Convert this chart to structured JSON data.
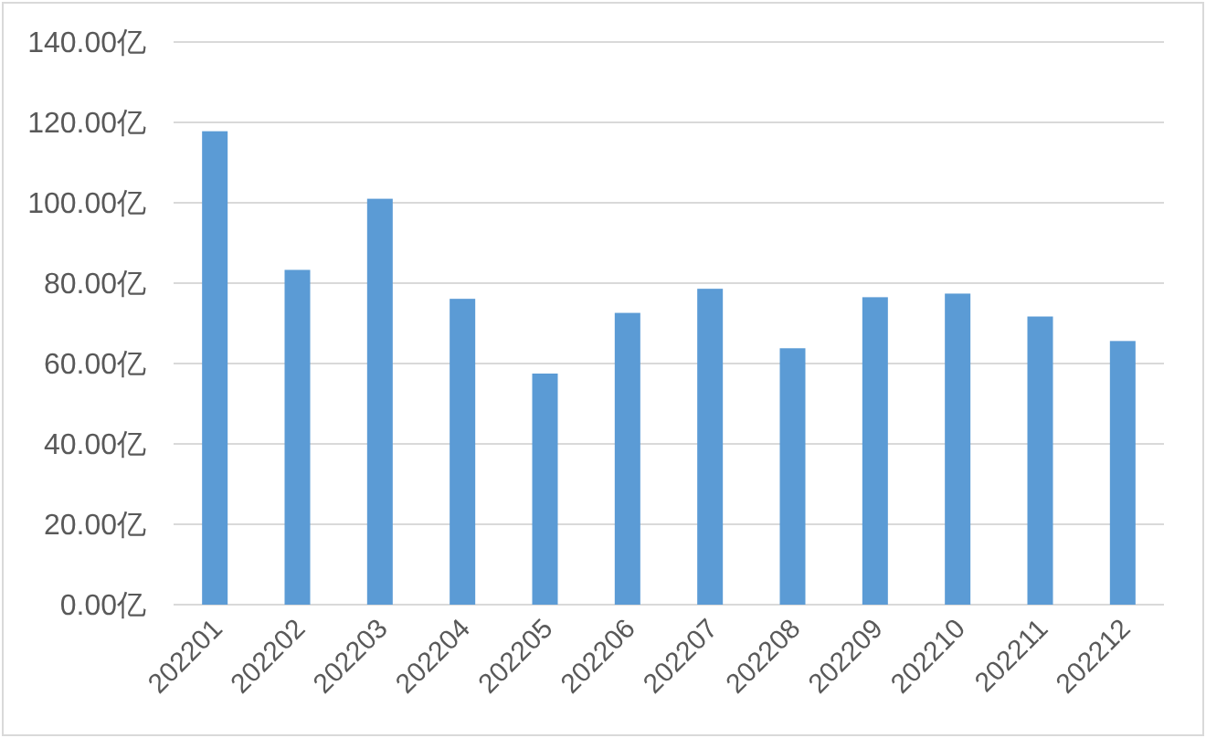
{
  "chart_data": {
    "type": "bar",
    "categories": [
      "202201",
      "202202",
      "202203",
      "202204",
      "202205",
      "202206",
      "202207",
      "202208",
      "202209",
      "202210",
      "202211",
      "202212"
    ],
    "values": [
      117.8,
      83.3,
      101.0,
      76.1,
      57.5,
      72.6,
      78.6,
      63.8,
      76.5,
      77.4,
      71.7,
      65.6
    ],
    "color": "#5b9bd5",
    "ylim": [
      0,
      140
    ],
    "yticks": [
      {
        "value": 0,
        "label": "0.00亿"
      },
      {
        "value": 20,
        "label": "20.00亿"
      },
      {
        "value": 40,
        "label": "40.00亿"
      },
      {
        "value": 60,
        "label": "60.00亿"
      },
      {
        "value": 80,
        "label": "80.00亿"
      },
      {
        "value": 100,
        "label": "100.00亿"
      },
      {
        "value": 120,
        "label": "120.00亿"
      },
      {
        "value": 140,
        "label": "140.00亿"
      }
    ],
    "grid": "y"
  }
}
